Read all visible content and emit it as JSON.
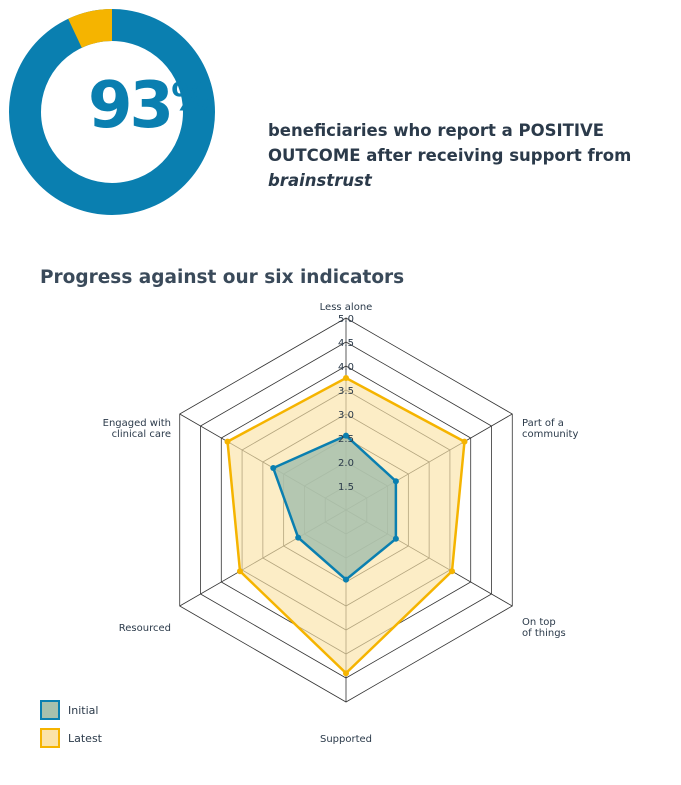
{
  "stat": {
    "value": "93",
    "suffix": "%",
    "fraction": 0.93,
    "colors": {
      "main": "#0a7fb0",
      "rest": "#f5b400"
    }
  },
  "headline": {
    "text": "beneficiaries who report a POSITIVE OUTCOME after receiving support from ",
    "italic": "brainstrust"
  },
  "section_title": "Progress against our six indicators",
  "chart_data": {
    "type": "radar",
    "categories": [
      "Less alone",
      "Part of a community",
      "On top of things",
      "Supported",
      "Resourced",
      "Engaged with clinical care"
    ],
    "category_lines": [
      [
        "Less alone"
      ],
      [
        "Part of a",
        "community"
      ],
      [
        "On top",
        "of things"
      ],
      [
        "Supported"
      ],
      [
        "Resourced"
      ],
      [
        "Engaged with",
        "clinical care"
      ]
    ],
    "rmin": 1.0,
    "rmax": 5.0,
    "ticks": [
      "1.5",
      "2.0",
      "2.5",
      "3.0",
      "3.5",
      "4.0",
      "4.5",
      "5.0"
    ],
    "grid": true,
    "legend_position": "bottom-left",
    "series": [
      {
        "name": "Initial",
        "values": [
          2.55,
          2.2,
          2.2,
          2.45,
          2.15,
          2.75
        ],
        "stroke": "#0a7fb0",
        "fill": "#a7c0ad"
      },
      {
        "name": "Latest",
        "values": [
          3.75,
          3.85,
          3.55,
          4.4,
          3.55,
          3.85
        ],
        "stroke": "#f5b400",
        "fill": "#fbe3a8"
      }
    ]
  }
}
